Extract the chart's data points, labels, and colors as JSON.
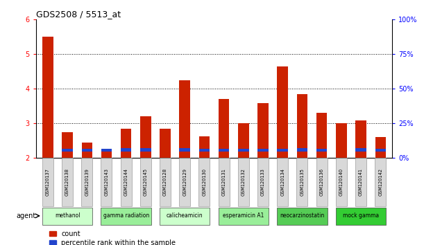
{
  "title": "GDS2508 / 5513_at",
  "samples": [
    "GSM120137",
    "GSM120138",
    "GSM120139",
    "GSM120143",
    "GSM120144",
    "GSM120145",
    "GSM120128",
    "GSM120129",
    "GSM120130",
    "GSM120131",
    "GSM120132",
    "GSM120133",
    "GSM120134",
    "GSM120135",
    "GSM120136",
    "GSM120140",
    "GSM120141",
    "GSM120142"
  ],
  "red_values": [
    5.5,
    2.75,
    2.45,
    2.25,
    2.85,
    3.2,
    2.85,
    4.25,
    2.62,
    3.7,
    3.0,
    3.58,
    4.65,
    3.85,
    3.3,
    3.0,
    3.08,
    2.6
  ],
  "blue_heights": [
    0.0,
    0.08,
    0.08,
    0.08,
    0.1,
    0.1,
    0.0,
    0.1,
    0.09,
    0.09,
    0.09,
    0.09,
    0.09,
    0.1,
    0.09,
    0.0,
    0.1,
    0.09
  ],
  "blue_bottoms": [
    0.0,
    2.18,
    2.18,
    2.18,
    2.18,
    2.18,
    0.0,
    2.18,
    2.18,
    2.18,
    2.18,
    2.18,
    2.18,
    2.18,
    2.18,
    0.0,
    2.18,
    2.18
  ],
  "ylim": [
    2.0,
    6.0
  ],
  "yticks": [
    2,
    3,
    4,
    5,
    6
  ],
  "y2ticks": [
    0,
    25,
    50,
    75,
    100
  ],
  "agent_groups": [
    {
      "label": "methanol",
      "indices": [
        0,
        1,
        2
      ],
      "color": "#ccffcc"
    },
    {
      "label": "gamma radiation",
      "indices": [
        3,
        4,
        5
      ],
      "color": "#99ee99"
    },
    {
      "label": "calicheamicin",
      "indices": [
        6,
        7,
        8
      ],
      "color": "#ccffcc"
    },
    {
      "label": "esperamicin A1",
      "indices": [
        9,
        10,
        11
      ],
      "color": "#99ee99"
    },
    {
      "label": "neocarzinostatin",
      "indices": [
        12,
        13,
        14
      ],
      "color": "#55cc55"
    },
    {
      "label": "mock gamma",
      "indices": [
        15,
        16,
        17
      ],
      "color": "#33cc33"
    }
  ],
  "red_color": "#cc2200",
  "blue_color": "#2244cc",
  "bar_width": 0.55,
  "bg_color": "#ffffff"
}
